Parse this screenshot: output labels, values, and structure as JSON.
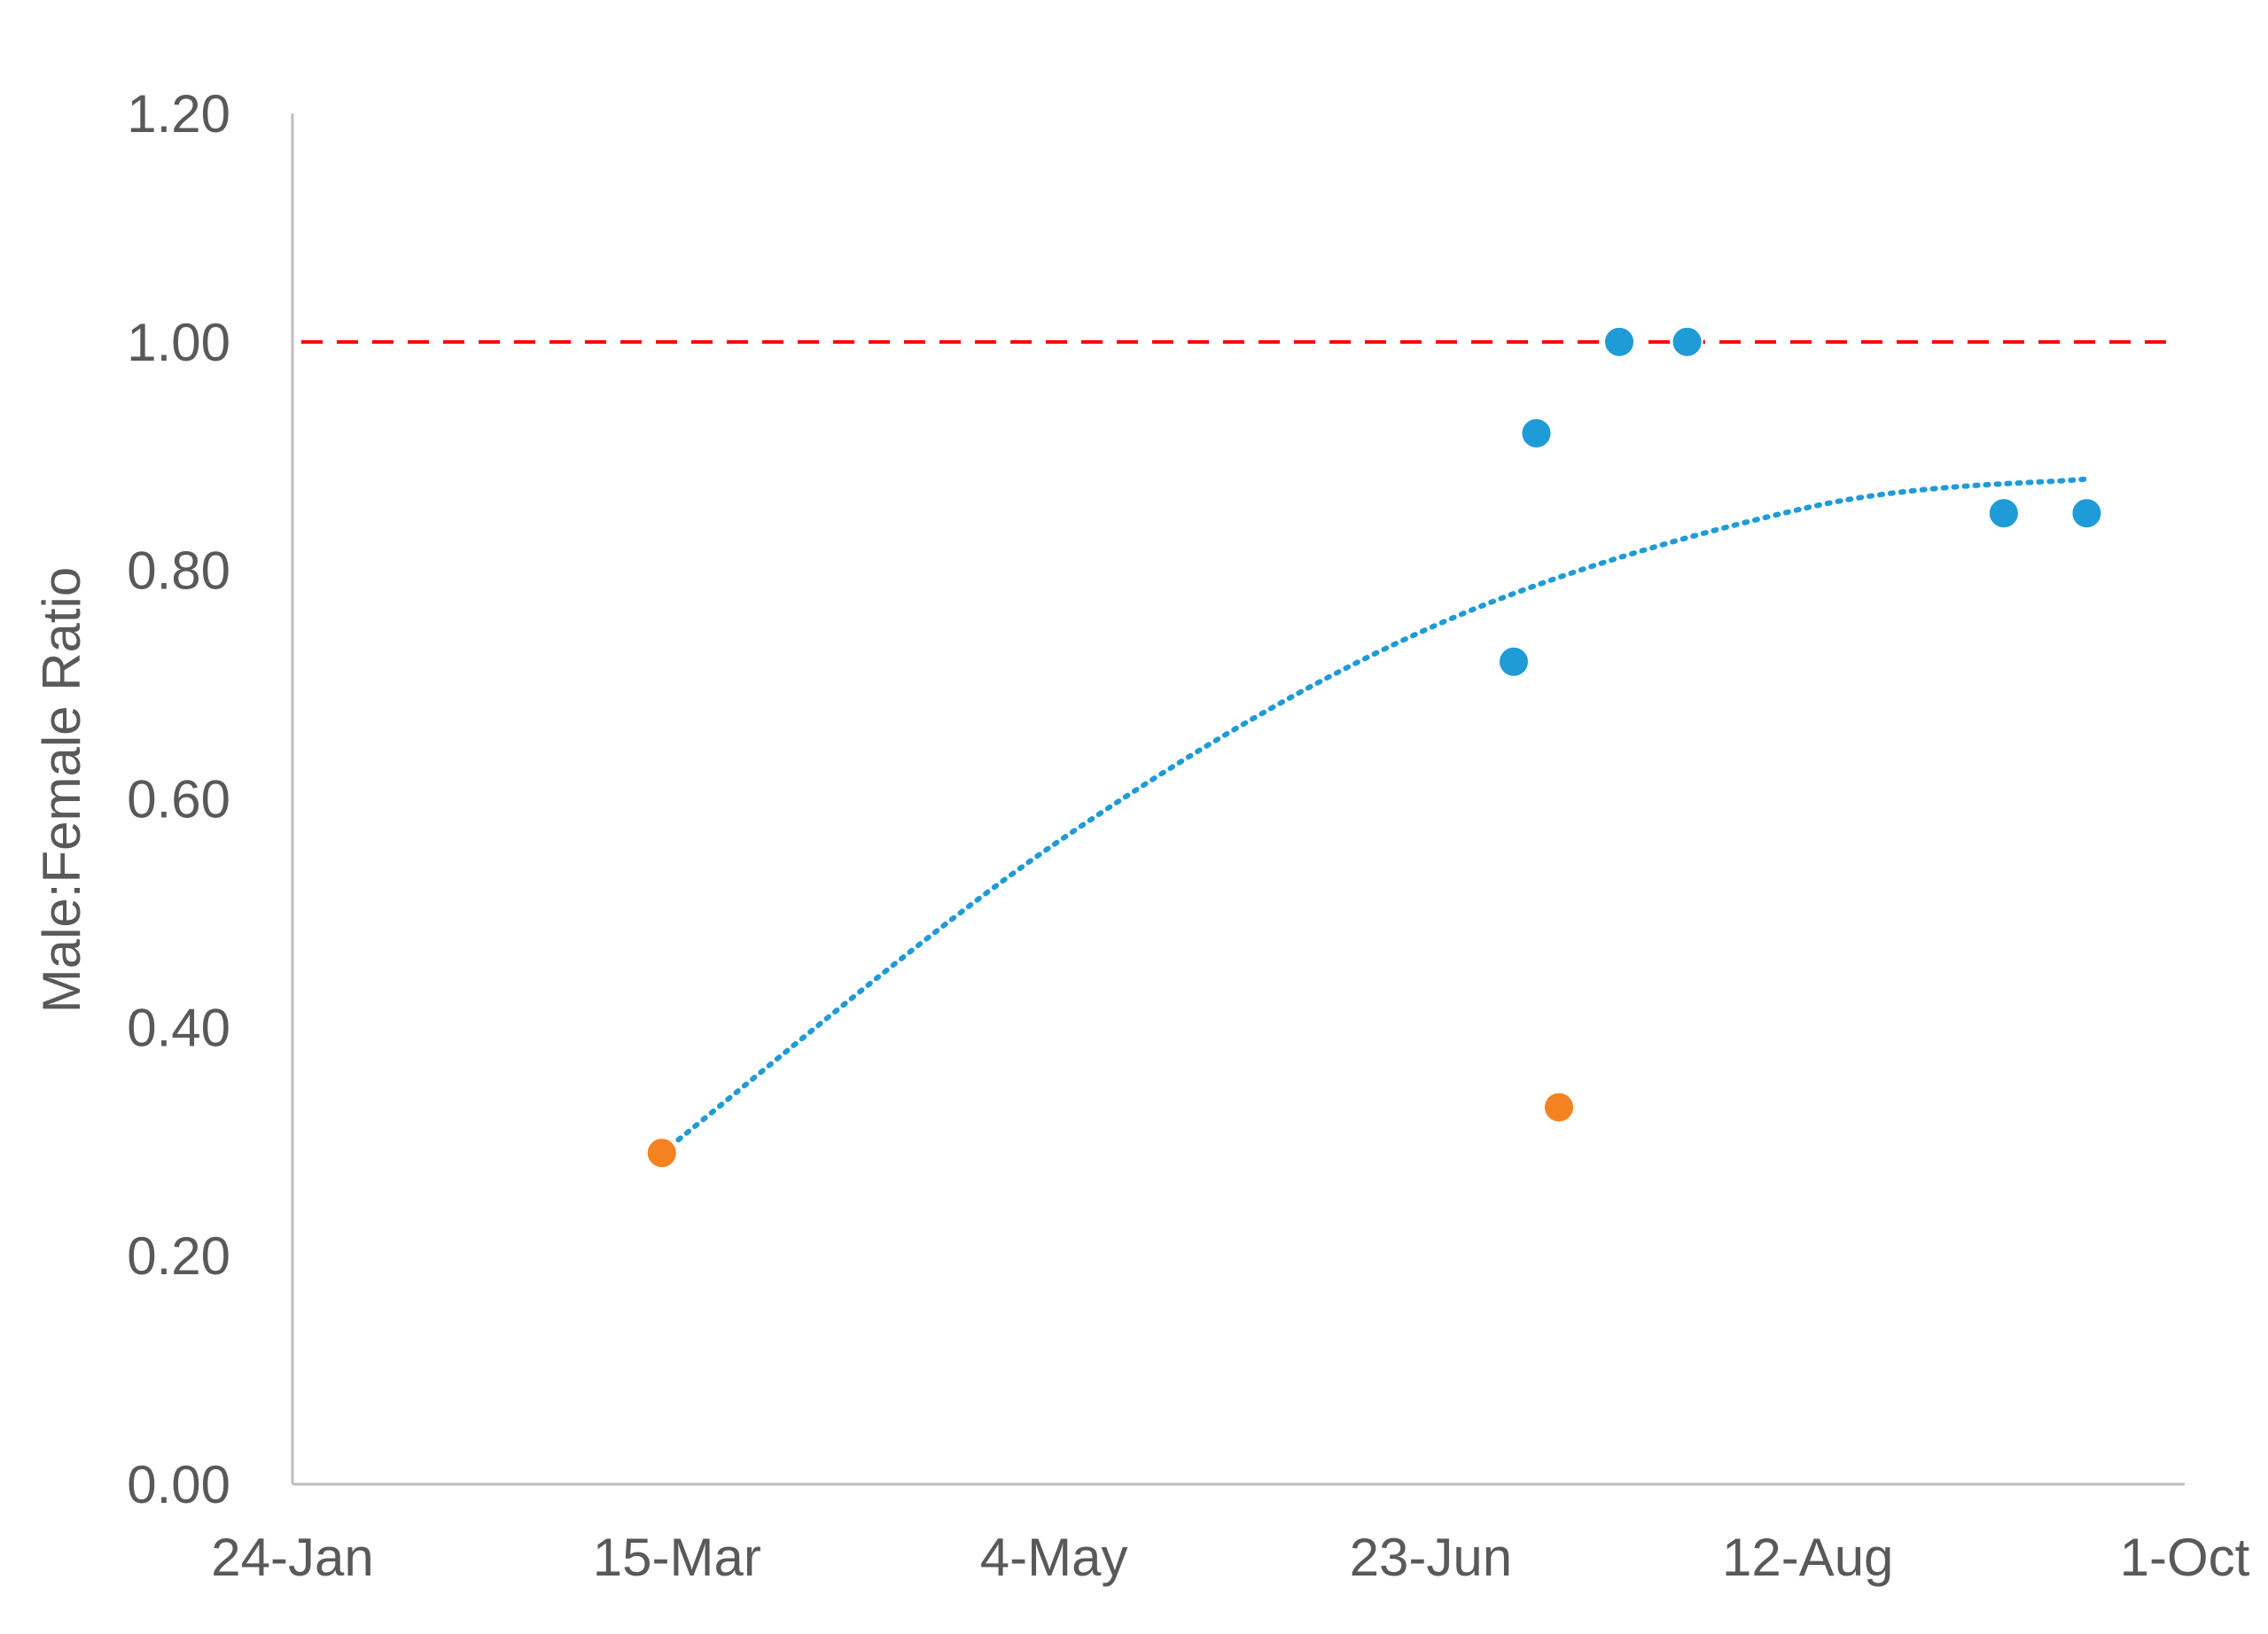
{
  "chart_data": {
    "type": "scatter",
    "title": "",
    "xlabel": "",
    "ylabel": "Male:Female Ratio",
    "x_axis": {
      "scale": "date",
      "range": [
        "24-Jan",
        "1-Oct"
      ],
      "ticks": [
        "24-Jan",
        "15-Mar",
        "4-May",
        "23-Jun",
        "12-Aug",
        "1-Oct"
      ]
    },
    "y_axis": {
      "range": [
        0,
        1.2
      ],
      "ticks": [
        "0.00",
        "0.20",
        "0.40",
        "0.60",
        "0.80",
        "1.00",
        "1.20"
      ]
    },
    "grid": false,
    "legend": "none",
    "series": [
      {
        "color": "#1f9bd7",
        "points": [
          {
            "x": "4-Jul",
            "y": 0.72
          },
          {
            "x": "7-Jul",
            "y": 0.92
          },
          {
            "x": "18-Jul",
            "y": 1.0
          },
          {
            "x": "27-Jul",
            "y": 1.0
          },
          {
            "x": "7-Sep",
            "y": 0.85
          },
          {
            "x": "18-Sep",
            "y": 0.85
          }
        ]
      },
      {
        "color": "#f58220",
        "points": [
          {
            "x": "13-Mar",
            "y": 0.29
          },
          {
            "x": "10-Jul",
            "y": 0.33
          }
        ]
      }
    ],
    "reference_lines": [
      {
        "y": 1.0,
        "color": "#ff0000",
        "style": "dashed"
      }
    ],
    "trendline": {
      "color": "#1f9bd7",
      "style": "dotted",
      "type": "polynomial",
      "points": [
        {
          "x": "13-Mar",
          "y": 0.29
        },
        {
          "x": "4-May",
          "y": 0.56
        },
        {
          "x": "23-Jun",
          "y": 0.75
        },
        {
          "x": "12-Aug",
          "y": 0.855
        },
        {
          "x": "18-Sep",
          "y": 0.88
        }
      ]
    },
    "colors": {
      "axis": "#bfbfbf",
      "text": "#595959",
      "point_primary": "#1f9bd7",
      "point_secondary": "#f58220",
      "reference": "#ff0000"
    }
  }
}
